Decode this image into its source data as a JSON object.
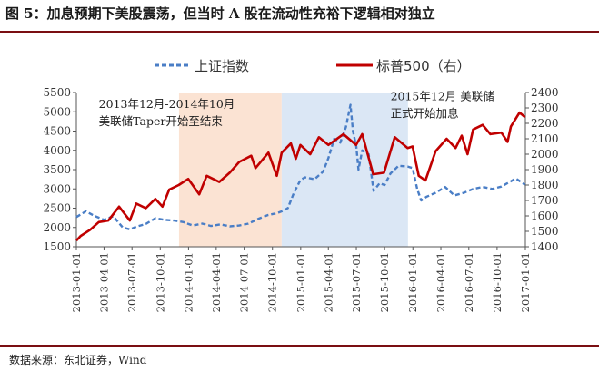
{
  "figure": {
    "title": "图 5：加息预期下美股震荡，但当时 A 股在流动性充裕下逻辑相对独立",
    "source": "数据来源：东北证券，Wind"
  },
  "chart_data": {
    "type": "line",
    "legend": [
      {
        "name": "上证指数",
        "style": "dashed",
        "color": "#4a7ec6",
        "axis": "left"
      },
      {
        "name": "标普500（右）",
        "style": "solid",
        "color": "#c00000",
        "axis": "right"
      }
    ],
    "legend_position": "top-center",
    "left_axis": {
      "min": 1500,
      "max": 5500,
      "ticks": [
        1500,
        2000,
        2500,
        3000,
        3500,
        4000,
        4500,
        5000,
        5500
      ]
    },
    "right_axis": {
      "min": 1400,
      "max": 2400,
      "ticks": [
        1400,
        1500,
        1600,
        1700,
        1800,
        1900,
        2000,
        2100,
        2200,
        2300,
        2400
      ]
    },
    "x_ticks": [
      "2013-01-01",
      "2013-04-01",
      "2013-07-01",
      "2013-10-01",
      "2014-01-01",
      "2014-04-01",
      "2014-07-01",
      "2014-10-01",
      "2015-01-01",
      "2015-04-01",
      "2015-07-01",
      "2015-10-01",
      "2016-01-01",
      "2016-04-01",
      "2016-07-01",
      "2016-10-01",
      "2017-01-01"
    ],
    "x_range": [
      "2013-01-01",
      "2017-01-01"
    ],
    "shaded_regions": [
      {
        "start": "2013-12-01",
        "end": "2014-10-31",
        "color": "#fbe3d3"
      },
      {
        "start": "2014-10-31",
        "end": "2015-12-16",
        "color": "#dbe7f5"
      }
    ],
    "annotations": [
      {
        "lines": [
          "2013年12月-2014年10月",
          "美联储Taper开始至结束"
        ],
        "anchor_date": "2013-03-15",
        "anchor_right": 2300
      },
      {
        "lines": [
          "2015年12月  美联储",
          "正式开始加息"
        ],
        "anchor_date": "2015-10-20",
        "anchor_right": 2350
      }
    ],
    "series": [
      {
        "name": "上证指数",
        "points": [
          [
            "2013-01-01",
            2270
          ],
          [
            "2013-02-01",
            2420
          ],
          [
            "2013-03-01",
            2300
          ],
          [
            "2013-04-01",
            2200
          ],
          [
            "2013-05-01",
            2290
          ],
          [
            "2013-06-01",
            2000
          ],
          [
            "2013-06-25",
            1950
          ],
          [
            "2013-07-15",
            2020
          ],
          [
            "2013-08-15",
            2090
          ],
          [
            "2013-09-15",
            2240
          ],
          [
            "2013-10-15",
            2200
          ],
          [
            "2013-11-15",
            2180
          ],
          [
            "2013-12-15",
            2140
          ],
          [
            "2014-01-15",
            2050
          ],
          [
            "2014-02-15",
            2100
          ],
          [
            "2014-03-15",
            2040
          ],
          [
            "2014-04-15",
            2080
          ],
          [
            "2014-05-15",
            2030
          ],
          [
            "2014-06-15",
            2050
          ],
          [
            "2014-07-15",
            2100
          ],
          [
            "2014-08-15",
            2220
          ],
          [
            "2014-09-15",
            2320
          ],
          [
            "2014-10-15",
            2370
          ],
          [
            "2014-11-01",
            2420
          ],
          [
            "2014-11-20",
            2500
          ],
          [
            "2014-12-10",
            2900
          ],
          [
            "2014-12-31",
            3230
          ],
          [
            "2015-01-15",
            3300
          ],
          [
            "2015-02-15",
            3250
          ],
          [
            "2015-03-15",
            3450
          ],
          [
            "2015-04-01",
            3800
          ],
          [
            "2015-04-20",
            4300
          ],
          [
            "2015-05-10",
            4200
          ],
          [
            "2015-05-28",
            4600
          ],
          [
            "2015-06-12",
            5180
          ],
          [
            "2015-06-20",
            4500
          ],
          [
            "2015-07-01",
            4100
          ],
          [
            "2015-07-08",
            3500
          ],
          [
            "2015-07-20",
            4000
          ],
          [
            "2015-08-10",
            3900
          ],
          [
            "2015-08-26",
            2950
          ],
          [
            "2015-09-15",
            3150
          ],
          [
            "2015-10-01",
            3100
          ],
          [
            "2015-10-20",
            3400
          ],
          [
            "2015-11-15",
            3600
          ],
          [
            "2015-12-15",
            3580
          ],
          [
            "2015-12-31",
            3540
          ],
          [
            "2016-01-15",
            3000
          ],
          [
            "2016-01-28",
            2700
          ],
          [
            "2016-02-15",
            2800
          ],
          [
            "2016-03-15",
            2900
          ],
          [
            "2016-04-15",
            3050
          ],
          [
            "2016-05-15",
            2830
          ],
          [
            "2016-06-15",
            2900
          ],
          [
            "2016-07-15",
            3000
          ],
          [
            "2016-08-15",
            3050
          ],
          [
            "2016-09-15",
            3000
          ],
          [
            "2016-10-15",
            3060
          ],
          [
            "2016-11-15",
            3200
          ],
          [
            "2016-12-01",
            3270
          ],
          [
            "2016-12-31",
            3110
          ]
        ]
      },
      {
        "name": "标普500（右）",
        "points": [
          [
            "2013-01-01",
            1440
          ],
          [
            "2013-01-15",
            1470
          ],
          [
            "2013-02-15",
            1510
          ],
          [
            "2013-03-15",
            1560
          ],
          [
            "2013-04-15",
            1570
          ],
          [
            "2013-05-20",
            1660
          ],
          [
            "2013-06-24",
            1570
          ],
          [
            "2013-07-15",
            1680
          ],
          [
            "2013-08-15",
            1650
          ],
          [
            "2013-09-15",
            1710
          ],
          [
            "2013-10-08",
            1660
          ],
          [
            "2013-10-30",
            1770
          ],
          [
            "2013-11-30",
            1800
          ],
          [
            "2013-12-31",
            1840
          ],
          [
            "2014-02-05",
            1740
          ],
          [
            "2014-03-01",
            1860
          ],
          [
            "2014-04-11",
            1820
          ],
          [
            "2014-05-15",
            1880
          ],
          [
            "2014-06-15",
            1950
          ],
          [
            "2014-07-24",
            1990
          ],
          [
            "2014-08-07",
            1910
          ],
          [
            "2014-09-18",
            2010
          ],
          [
            "2014-10-15",
            1860
          ],
          [
            "2014-10-31",
            2010
          ],
          [
            "2014-11-30",
            2070
          ],
          [
            "2014-12-16",
            1970
          ],
          [
            "2014-12-31",
            2060
          ],
          [
            "2015-02-01",
            2000
          ],
          [
            "2015-03-01",
            2110
          ],
          [
            "2015-04-01",
            2060
          ],
          [
            "2015-05-20",
            2130
          ],
          [
            "2015-06-30",
            2060
          ],
          [
            "2015-07-20",
            2130
          ],
          [
            "2015-08-25",
            1870
          ],
          [
            "2015-09-29",
            1880
          ],
          [
            "2015-11-03",
            2110
          ],
          [
            "2015-12-15",
            2040
          ],
          [
            "2015-12-31",
            2050
          ],
          [
            "2016-01-20",
            1860
          ],
          [
            "2016-02-11",
            1830
          ],
          [
            "2016-03-15",
            2020
          ],
          [
            "2016-04-20",
            2100
          ],
          [
            "2016-05-19",
            2040
          ],
          [
            "2016-06-08",
            2120
          ],
          [
            "2016-06-27",
            2000
          ],
          [
            "2016-07-15",
            2160
          ],
          [
            "2016-08-15",
            2190
          ],
          [
            "2016-09-09",
            2130
          ],
          [
            "2016-10-15",
            2140
          ],
          [
            "2016-11-04",
            2080
          ],
          [
            "2016-11-15",
            2180
          ],
          [
            "2016-12-13",
            2270
          ],
          [
            "2016-12-31",
            2240
          ]
        ]
      }
    ]
  }
}
